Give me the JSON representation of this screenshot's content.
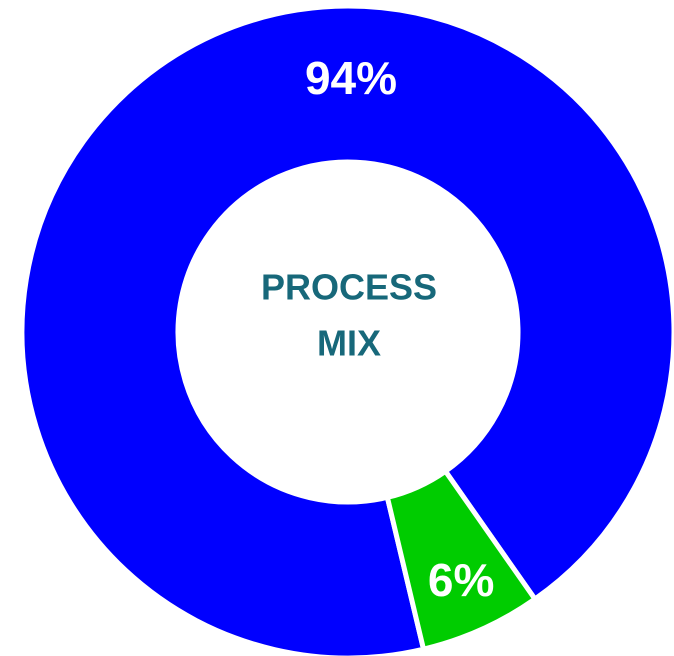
{
  "chart_data": {
    "type": "pie",
    "donut": true,
    "slices": [
      {
        "label": "94%",
        "value": 94,
        "color": "#0000ff"
      },
      {
        "label": "6%",
        "value": 6,
        "color": "#00cc00"
      }
    ],
    "center_text": [
      "PROCESS",
      "MIX"
    ],
    "center_text_color": "#17687a",
    "separator_color": "#ffffff",
    "legend": "none"
  }
}
